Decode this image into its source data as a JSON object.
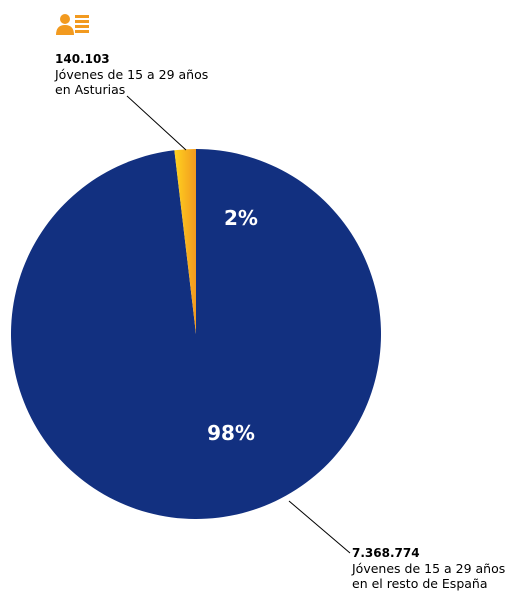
{
  "chart_data": {
    "type": "pie",
    "slices": [
      {
        "key": "asturias",
        "value": 140103,
        "value_label": "140.103",
        "label_line1": "Jóvenes de 15 a 29 años",
        "label_line2": "en Asturias",
        "percent_label": "2%",
        "color": "#F29A1F",
        "color_light": "#FFD21F"
      },
      {
        "key": "resto",
        "value": 7368774,
        "value_label": "7.368.774",
        "label_line1": "Jóvenes de 15 a 29 años",
        "label_line2": "en el resto de España",
        "percent_label": "98%",
        "color": "#123080"
      }
    ]
  },
  "legend_icon": {
    "icon": "person-list-icon",
    "color": "#F29A1F"
  },
  "colors": {
    "callout_line": "#000000",
    "percent_text": "#ffffff"
  }
}
